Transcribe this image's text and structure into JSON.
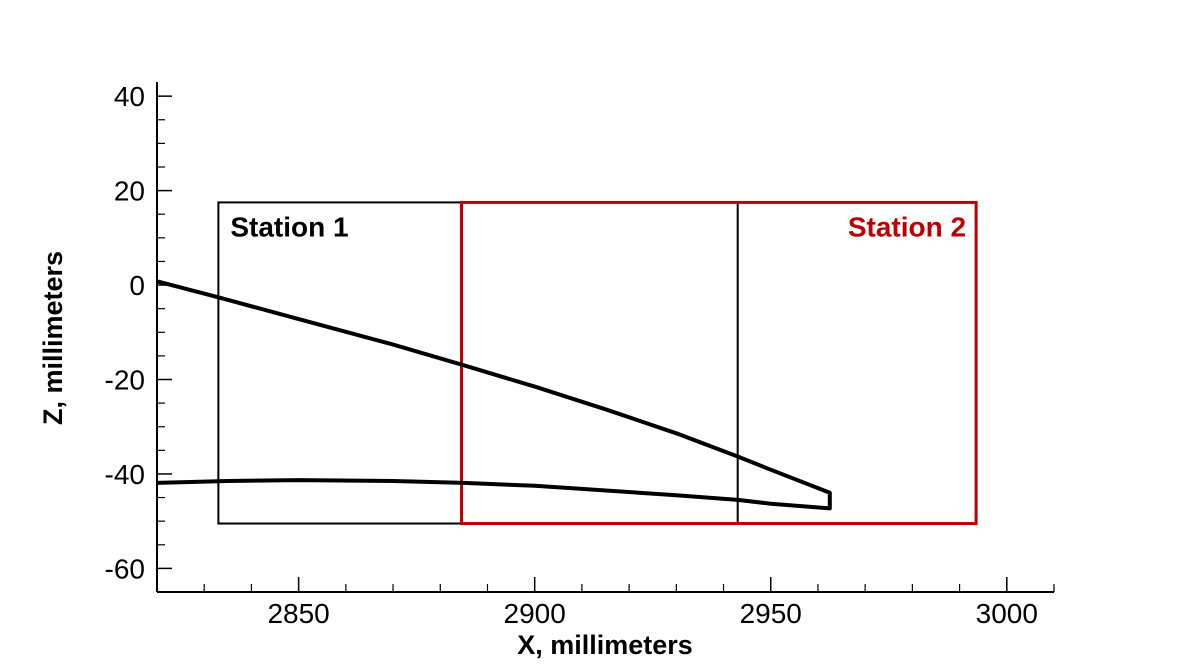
{
  "chart_data": {
    "type": "line",
    "title": "",
    "xlabel": "X, millimeters",
    "ylabel": "Z, millimeters",
    "xlim": [
      2820,
      3010
    ],
    "ylim": [
      -65,
      43
    ],
    "x_ticks": [
      2850,
      2900,
      2950,
      3000
    ],
    "x_tick_labels": [
      "2850",
      "2900",
      "2950",
      "3000"
    ],
    "x_minor_step": 10,
    "y_ticks": [
      40,
      20,
      0,
      -20,
      -40,
      -60
    ],
    "y_tick_labels": [
      "40",
      "20",
      "0",
      "-20",
      "-40",
      "-60"
    ],
    "y_minor_step": 5,
    "grid": false,
    "series": [
      {
        "color": "#000000",
        "points": [
          [
            2820,
            0.8
          ],
          [
            2833,
            -2.6
          ],
          [
            2850,
            -7.2
          ],
          [
            2870,
            -12.6
          ],
          [
            2885,
            -17.0
          ],
          [
            2900,
            -21.5
          ],
          [
            2915,
            -26.3
          ],
          [
            2930,
            -31.4
          ],
          [
            2943,
            -36.3
          ],
          [
            2950,
            -39.1
          ],
          [
            2962.5,
            -44.0
          ],
          [
            2962.5,
            -47.3
          ],
          [
            2950,
            -46.3
          ],
          [
            2943,
            -45.5
          ],
          [
            2930,
            -44.5
          ],
          [
            2900,
            -42.5
          ],
          [
            2885,
            -41.9
          ],
          [
            2870,
            -41.5
          ],
          [
            2850,
            -41.3
          ],
          [
            2835,
            -41.5
          ],
          [
            2820,
            -41.9
          ]
        ]
      }
    ],
    "regions": [
      {
        "label": "Station 1",
        "x": [
          2833,
          2943
        ],
        "z": [
          -50.5,
          17.5
        ],
        "color": "#000000",
        "label_anchor": "top-left"
      },
      {
        "label": "Station 2",
        "x": [
          2884.5,
          2993.5
        ],
        "z": [
          -50.5,
          17.5
        ],
        "color": "#c00000",
        "label_anchor": "top-right"
      }
    ]
  }
}
